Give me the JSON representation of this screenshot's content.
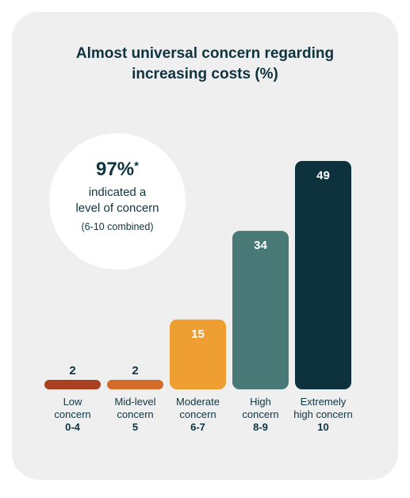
{
  "headline": {
    "line1": "Almost universal concern regarding",
    "line2": "increasing costs (%)"
  },
  "callout": {
    "value": "97%",
    "mark": "*",
    "line1": "indicated a",
    "line2": "level of concern",
    "note": "(6-10 combined)"
  },
  "chart_data": {
    "type": "bar",
    "title": "Almost universal concern regarding increasing costs (%)",
    "categories": [
      {
        "line1": "Low",
        "line2": "concern",
        "range": "0-4"
      },
      {
        "line1": "Mid-level",
        "line2": "concern",
        "range": "5"
      },
      {
        "line1": "Moderate",
        "line2": "concern",
        "range": "6-7"
      },
      {
        "line1": "High",
        "line2": "concern",
        "range": "8-9"
      },
      {
        "line1": "Extremely",
        "line2": "high concern",
        "range": "10"
      }
    ],
    "values": [
      2,
      2,
      15,
      34,
      49
    ],
    "data_labels": [
      "2",
      "2",
      "15",
      "34",
      "49"
    ],
    "colors": [
      "#a9401f",
      "#d36c28",
      "#ef9f31",
      "#487977",
      "#0d313d"
    ],
    "label_colors": [
      "#0f3440",
      "#0f3440",
      "#ffffff",
      "#ffffff",
      "#ffffff"
    ],
    "ylim": [
      0,
      49
    ],
    "grid": false,
    "legend": "none"
  }
}
